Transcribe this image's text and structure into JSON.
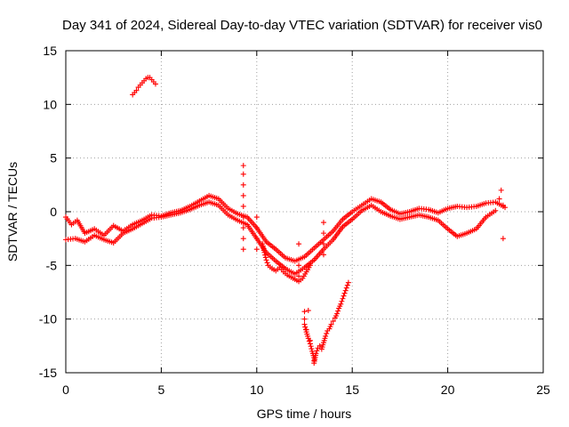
{
  "chart_data": {
    "type": "scatter",
    "title": "Day 341 of 2024, Sidereal Day-to-day VTEC variation (SDTVAR) for receiver vis0",
    "xlabel": "GPS time / hours",
    "ylabel": "SDTVAR / TECUs",
    "xlim": [
      0,
      25
    ],
    "ylim": [
      -15,
      15
    ],
    "xticks": [
      0,
      5,
      10,
      15,
      20,
      25
    ],
    "xtick_labels": [
      "0",
      "5",
      "10",
      "15",
      "20",
      "25"
    ],
    "yticks": [
      15,
      10,
      5,
      0,
      -5,
      -10,
      -15
    ],
    "ytick_labels": [
      "15",
      "10",
      "5",
      "0",
      "-5",
      "-10",
      "-15"
    ],
    "grid": true,
    "marker": "+",
    "color": "#ff0000",
    "series": [
      {
        "name": "main-band",
        "points": [
          [
            0.0,
            -0.5
          ],
          [
            0.3,
            -1.2
          ],
          [
            0.6,
            -0.8
          ],
          [
            1.0,
            -2.0
          ],
          [
            1.5,
            -1.6
          ],
          [
            2.0,
            -2.2
          ],
          [
            2.5,
            -1.3
          ],
          [
            3.0,
            -1.8
          ],
          [
            3.5,
            -1.2
          ],
          [
            4.0,
            -0.8
          ],
          [
            4.5,
            -0.3
          ],
          [
            5.0,
            -0.4
          ],
          [
            5.5,
            -0.1
          ],
          [
            6.0,
            0.1
          ],
          [
            6.5,
            0.5
          ],
          [
            7.0,
            1.0
          ],
          [
            7.5,
            1.5
          ],
          [
            8.0,
            1.2
          ],
          [
            8.5,
            0.3
          ],
          [
            9.0,
            -0.2
          ],
          [
            9.5,
            -0.5
          ],
          [
            10.0,
            -1.5
          ],
          [
            10.5,
            -2.8
          ],
          [
            11.0,
            -3.5
          ],
          [
            11.5,
            -4.3
          ],
          [
            12.0,
            -4.6
          ],
          [
            12.5,
            -4.2
          ],
          [
            13.0,
            -3.4
          ],
          [
            13.5,
            -2.6
          ],
          [
            14.0,
            -1.8
          ],
          [
            14.5,
            -0.7
          ],
          [
            15.0,
            0.0
          ],
          [
            15.5,
            0.6
          ],
          [
            16.0,
            1.2
          ],
          [
            16.5,
            0.9
          ],
          [
            17.0,
            0.2
          ],
          [
            17.5,
            -0.2
          ],
          [
            18.0,
            0.0
          ],
          [
            18.5,
            0.3
          ],
          [
            19.0,
            0.2
          ],
          [
            19.5,
            -0.1
          ],
          [
            20.0,
            0.3
          ],
          [
            20.5,
            0.5
          ],
          [
            21.0,
            0.4
          ],
          [
            21.5,
            0.5
          ],
          [
            22.0,
            0.8
          ],
          [
            22.5,
            0.9
          ],
          [
            23.0,
            0.4
          ]
        ]
      },
      {
        "name": "lower-band",
        "points": [
          [
            0.0,
            -2.6
          ],
          [
            0.5,
            -2.5
          ],
          [
            1.0,
            -2.8
          ],
          [
            1.5,
            -2.2
          ],
          [
            2.0,
            -2.6
          ],
          [
            2.5,
            -2.9
          ],
          [
            3.0,
            -2.0
          ],
          [
            3.5,
            -1.6
          ],
          [
            4.0,
            -1.1
          ],
          [
            4.5,
            -0.6
          ],
          [
            5.0,
            -0.5
          ],
          [
            5.5,
            -0.3
          ],
          [
            6.0,
            -0.1
          ],
          [
            6.5,
            0.2
          ],
          [
            7.0,
            0.6
          ],
          [
            7.5,
            0.9
          ],
          [
            8.0,
            0.6
          ],
          [
            8.5,
            -0.3
          ],
          [
            9.0,
            -0.8
          ],
          [
            9.5,
            -1.2
          ],
          [
            10.0,
            -2.5
          ],
          [
            10.5,
            -3.8
          ],
          [
            11.0,
            -4.6
          ],
          [
            11.5,
            -5.3
          ],
          [
            12.0,
            -5.8
          ],
          [
            12.5,
            -5.2
          ],
          [
            13.0,
            -4.5
          ],
          [
            13.5,
            -3.5
          ],
          [
            14.0,
            -2.6
          ],
          [
            14.5,
            -1.4
          ],
          [
            15.0,
            -0.7
          ],
          [
            15.5,
            0.1
          ],
          [
            16.0,
            0.6
          ],
          [
            16.5,
            0.0
          ],
          [
            17.0,
            -0.4
          ],
          [
            17.5,
            -0.7
          ],
          [
            18.0,
            -0.5
          ],
          [
            18.5,
            -0.3
          ],
          [
            19.0,
            -0.5
          ],
          [
            19.5,
            -0.8
          ],
          [
            20.0,
            -1.6
          ],
          [
            20.5,
            -2.3
          ],
          [
            21.0,
            -2.0
          ],
          [
            21.5,
            -1.6
          ],
          [
            22.0,
            -0.5
          ],
          [
            22.5,
            0.1
          ]
        ]
      },
      {
        "name": "dip-extension",
        "points": [
          [
            10.3,
            -3.0
          ],
          [
            10.4,
            -3.8
          ],
          [
            10.5,
            -4.5
          ],
          [
            10.6,
            -5.0
          ],
          [
            10.8,
            -5.3
          ],
          [
            11.0,
            -5.5
          ],
          [
            11.2,
            -5.2
          ],
          [
            11.4,
            -5.6
          ],
          [
            11.6,
            -5.9
          ],
          [
            11.8,
            -6.1
          ],
          [
            12.0,
            -6.3
          ],
          [
            12.2,
            -6.5
          ],
          [
            12.4,
            -6.2
          ],
          [
            12.6,
            -5.6
          ],
          [
            12.8,
            -5.0
          ]
        ]
      },
      {
        "name": "upper-arc",
        "points": [
          [
            3.5,
            10.9
          ],
          [
            3.6,
            11.1
          ],
          [
            3.7,
            11.3
          ],
          [
            3.8,
            11.6
          ],
          [
            3.9,
            11.8
          ],
          [
            4.0,
            12.0
          ],
          [
            4.1,
            12.2
          ],
          [
            4.2,
            12.4
          ],
          [
            4.3,
            12.5
          ],
          [
            4.4,
            12.5
          ],
          [
            4.5,
            12.3
          ],
          [
            4.6,
            12.1
          ],
          [
            4.7,
            11.9
          ]
        ]
      },
      {
        "name": "lower-arc",
        "points": [
          [
            12.5,
            -10.5
          ],
          [
            12.6,
            -11.2
          ],
          [
            12.7,
            -11.8
          ],
          [
            12.8,
            -12.3
          ],
          [
            12.9,
            -13.0
          ],
          [
            13.0,
            -13.6
          ],
          [
            13.0,
            -14.1
          ],
          [
            13.1,
            -13.2
          ],
          [
            13.2,
            -12.7
          ],
          [
            13.3,
            -12.5
          ],
          [
            13.4,
            -12.8
          ],
          [
            13.5,
            -12.2
          ],
          [
            13.6,
            -11.6
          ],
          [
            13.7,
            -11.1
          ],
          [
            13.8,
            -10.9
          ],
          [
            13.9,
            -10.5
          ],
          [
            14.0,
            -10.2
          ],
          [
            14.1,
            -9.9
          ],
          [
            14.2,
            -9.5
          ],
          [
            14.3,
            -9.0
          ],
          [
            14.4,
            -8.6
          ],
          [
            14.5,
            -8.1
          ],
          [
            14.6,
            -7.6
          ],
          [
            14.7,
            -7.1
          ],
          [
            14.8,
            -6.6
          ]
        ]
      },
      {
        "name": "spikes",
        "points": [
          [
            9.3,
            4.3
          ],
          [
            9.3,
            3.5
          ],
          [
            9.3,
            2.5
          ],
          [
            9.3,
            1.5
          ],
          [
            9.3,
            0.5
          ],
          [
            9.3,
            -0.5
          ],
          [
            9.3,
            -1.5
          ],
          [
            9.3,
            -2.5
          ],
          [
            9.3,
            -3.5
          ],
          [
            10.0,
            -0.5
          ],
          [
            10.0,
            -1.5
          ],
          [
            10.0,
            -2.5
          ],
          [
            10.0,
            -3.5
          ],
          [
            12.5,
            -9.3
          ],
          [
            12.5,
            -10.0
          ],
          [
            12.7,
            -9.2
          ],
          [
            12.6,
            -11.0
          ],
          [
            12.8,
            -12.0
          ],
          [
            13.5,
            -1.0
          ],
          [
            13.5,
            -2.0
          ],
          [
            13.5,
            -3.0
          ],
          [
            13.5,
            -4.0
          ],
          [
            12.2,
            -3.0
          ],
          [
            12.2,
            -5.0
          ],
          [
            12.2,
            -6.0
          ],
          [
            22.8,
            2.0
          ],
          [
            22.7,
            1.2
          ],
          [
            22.9,
            0.6
          ],
          [
            22.9,
            -2.5
          ]
        ]
      }
    ]
  }
}
